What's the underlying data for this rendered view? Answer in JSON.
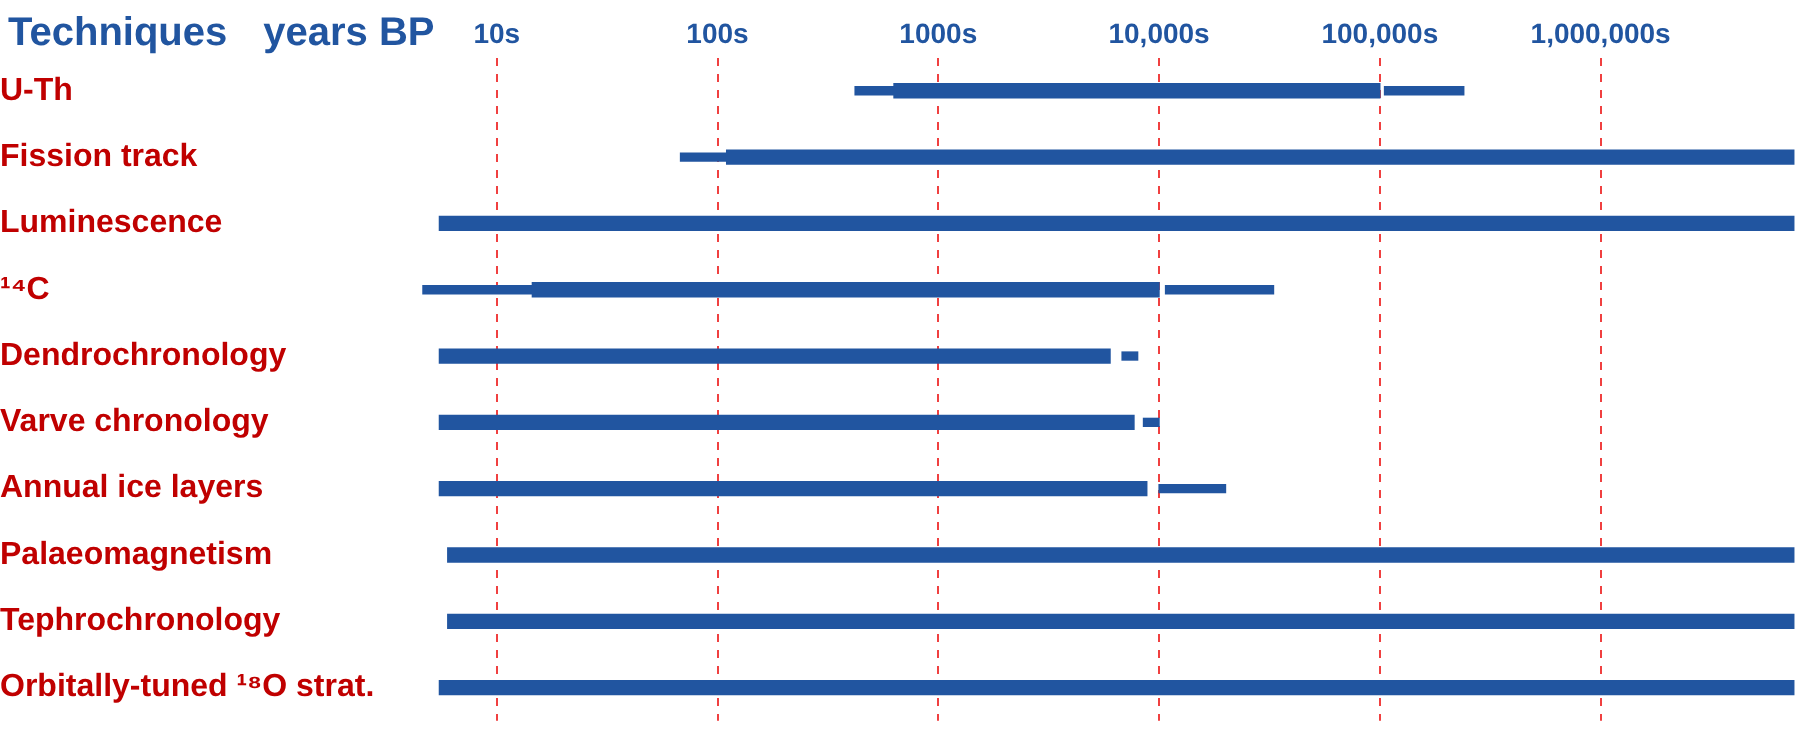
{
  "chart_data": {
    "type": "bar",
    "orientation": "horizontal",
    "ylabel": "Techniques",
    "xlabel": "years BP",
    "categories": [
      "U-Th",
      "Fission track",
      "Luminescence",
      "¹⁴C",
      "Dendrochronology",
      "Varve chronology",
      "Annual ice layers",
      "Palaeomagnetism",
      "Tephrochronology",
      "Orbitally-tuned ¹⁸O strat."
    ],
    "series": [
      {
        "color": "#2155a0",
        "line_style": "solid",
        "base": [
          630,
          110,
          5.5,
          14.5,
          5.5,
          5.5,
          5.5,
          6,
          6,
          5.5
        ],
        "values": [
          99370,
          7499890,
          7499994.5,
          9985.5,
          5994.5,
          7694.5,
          8794.5,
          7499994,
          7499994,
          7499994.5
        ]
      },
      {
        "color": "#2155a0",
        "line_style": "dotted",
        "base": [
          420,
          68,
          null,
          4.6,
          null,
          null,
          null,
          null,
          null,
          null
        ],
        "values": [
          210,
          42,
          null,
          9.9,
          null,
          null,
          null,
          null,
          null,
          null
        ]
      },
      {
        "color": "#2155a0",
        "line_style": "dotted",
        "base": [
          105000,
          null,
          null,
          10700,
          6800,
          8500,
          10000,
          null,
          null,
          null
        ],
        "values": [
          135000,
          null,
          null,
          22300,
          1200,
          1500,
          10000,
          null,
          null,
          null
        ]
      }
    ],
    "log": "x",
    "xlim": [
      4.6,
      8000000
    ],
    "xticks": [
      {
        "value": 10,
        "label": "10s"
      },
      {
        "value": 100,
        "label": "100s"
      },
      {
        "value": 1000,
        "label": "1000s"
      },
      {
        "value": 10000,
        "label": "10,000s"
      },
      {
        "value": 100000,
        "label": "100,000s"
      },
      {
        "value": 1000000,
        "label": "1,000,000s"
      }
    ],
    "grid": "x",
    "legend": false
  }
}
